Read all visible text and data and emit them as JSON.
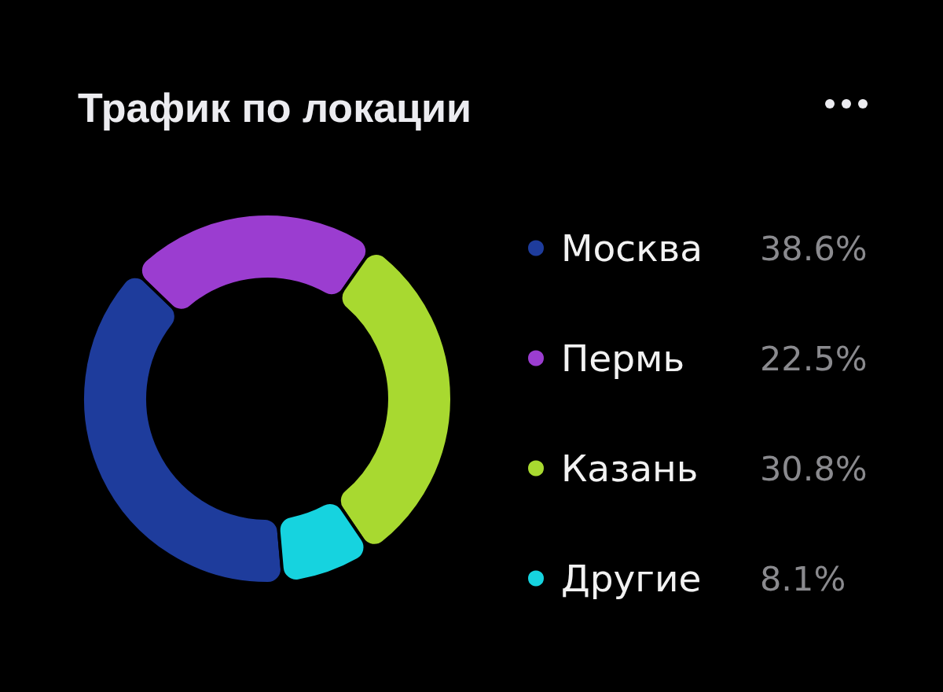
{
  "chart_data": {
    "type": "donut",
    "title": "Трафик по локации",
    "categories": [
      "Москва",
      "Пермь",
      "Казань",
      "Другие"
    ],
    "values": [
      38.6,
      22.5,
      30.8,
      8.1
    ],
    "colors": [
      "#1e3c9c",
      "#9b3dd0",
      "#a8d930",
      "#16d3df"
    ],
    "value_labels": [
      "38.6%",
      "22.5%",
      "30.8%",
      "8.1%"
    ],
    "legend": "right"
  }
}
